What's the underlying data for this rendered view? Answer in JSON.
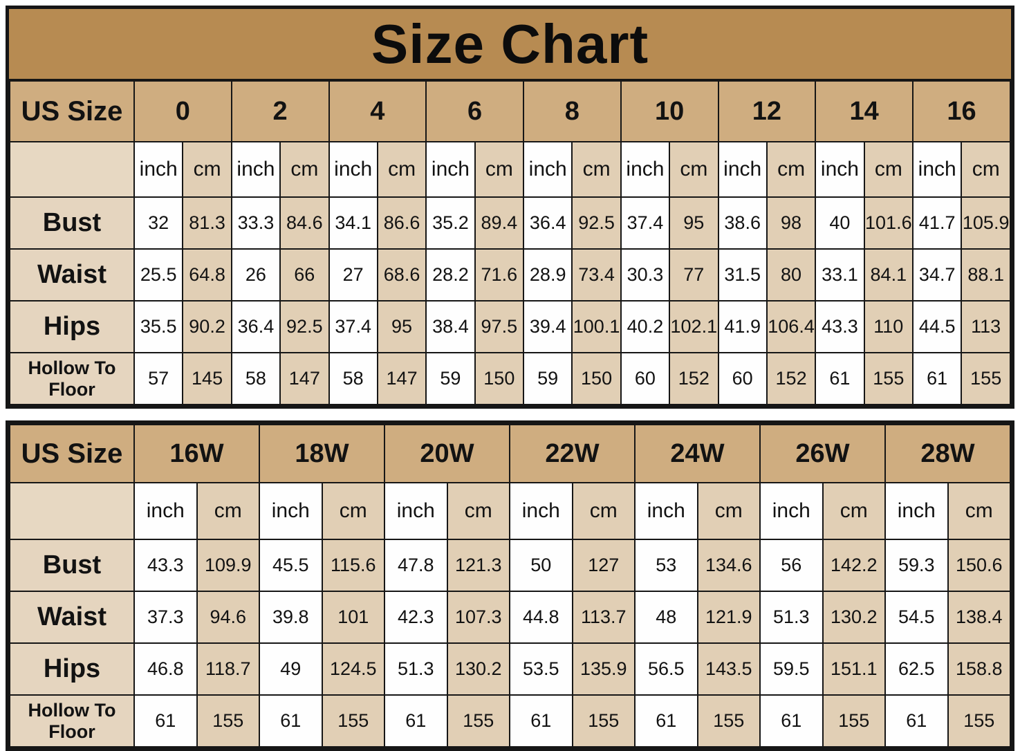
{
  "colors": {
    "title_bg": "#b78b52",
    "header_bg": "#cfad80",
    "tan_cell": "#e1cfb5",
    "label_cell": "#e5d5bf",
    "white_cell": "#fefefe",
    "border": "#161616"
  },
  "chart_data": [
    {
      "type": "table",
      "title": "Size Chart",
      "corner_label": "US Size",
      "sizes": [
        "0",
        "2",
        "4",
        "6",
        "8",
        "10",
        "12",
        "14",
        "16"
      ],
      "units": [
        "inch",
        "cm"
      ],
      "rows": [
        {
          "label": "Bust",
          "values": [
            "32",
            "81.3",
            "33.3",
            "84.6",
            "34.1",
            "86.6",
            "35.2",
            "89.4",
            "36.4",
            "92.5",
            "37.4",
            "95",
            "38.6",
            "98",
            "40",
            "101.6",
            "41.7",
            "105.9"
          ]
        },
        {
          "label": "Waist",
          "values": [
            "25.5",
            "64.8",
            "26",
            "66",
            "27",
            "68.6",
            "28.2",
            "71.6",
            "28.9",
            "73.4",
            "30.3",
            "77",
            "31.5",
            "80",
            "33.1",
            "84.1",
            "34.7",
            "88.1"
          ]
        },
        {
          "label": "Hips",
          "values": [
            "35.5",
            "90.2",
            "36.4",
            "92.5",
            "37.4",
            "95",
            "38.4",
            "97.5",
            "39.4",
            "100.1",
            "40.2",
            "102.1",
            "41.9",
            "106.4",
            "43.3",
            "110",
            "44.5",
            "113"
          ]
        },
        {
          "label": "Hollow To Floor",
          "values": [
            "57",
            "145",
            "58",
            "147",
            "58",
            "147",
            "59",
            "150",
            "59",
            "150",
            "60",
            "152",
            "60",
            "152",
            "61",
            "155",
            "61",
            "155"
          ]
        }
      ]
    },
    {
      "type": "table",
      "corner_label": "US Size",
      "sizes": [
        "16W",
        "18W",
        "20W",
        "22W",
        "24W",
        "26W",
        "28W"
      ],
      "units": [
        "inch",
        "cm"
      ],
      "rows": [
        {
          "label": "Bust",
          "values": [
            "43.3",
            "109.9",
            "45.5",
            "115.6",
            "47.8",
            "121.3",
            "50",
            "127",
            "53",
            "134.6",
            "56",
            "142.2",
            "59.3",
            "150.6"
          ]
        },
        {
          "label": "Waist",
          "values": [
            "37.3",
            "94.6",
            "39.8",
            "101",
            "42.3",
            "107.3",
            "44.8",
            "113.7",
            "48",
            "121.9",
            "51.3",
            "130.2",
            "54.5",
            "138.4"
          ]
        },
        {
          "label": "Hips",
          "values": [
            "46.8",
            "118.7",
            "49",
            "124.5",
            "51.3",
            "130.2",
            "53.5",
            "135.9",
            "56.5",
            "143.5",
            "59.5",
            "151.1",
            "62.5",
            "158.8"
          ]
        },
        {
          "label": "Hollow To Floor",
          "values": [
            "61",
            "155",
            "61",
            "155",
            "61",
            "155",
            "61",
            "155",
            "61",
            "155",
            "61",
            "155",
            "61",
            "155"
          ]
        }
      ]
    }
  ]
}
